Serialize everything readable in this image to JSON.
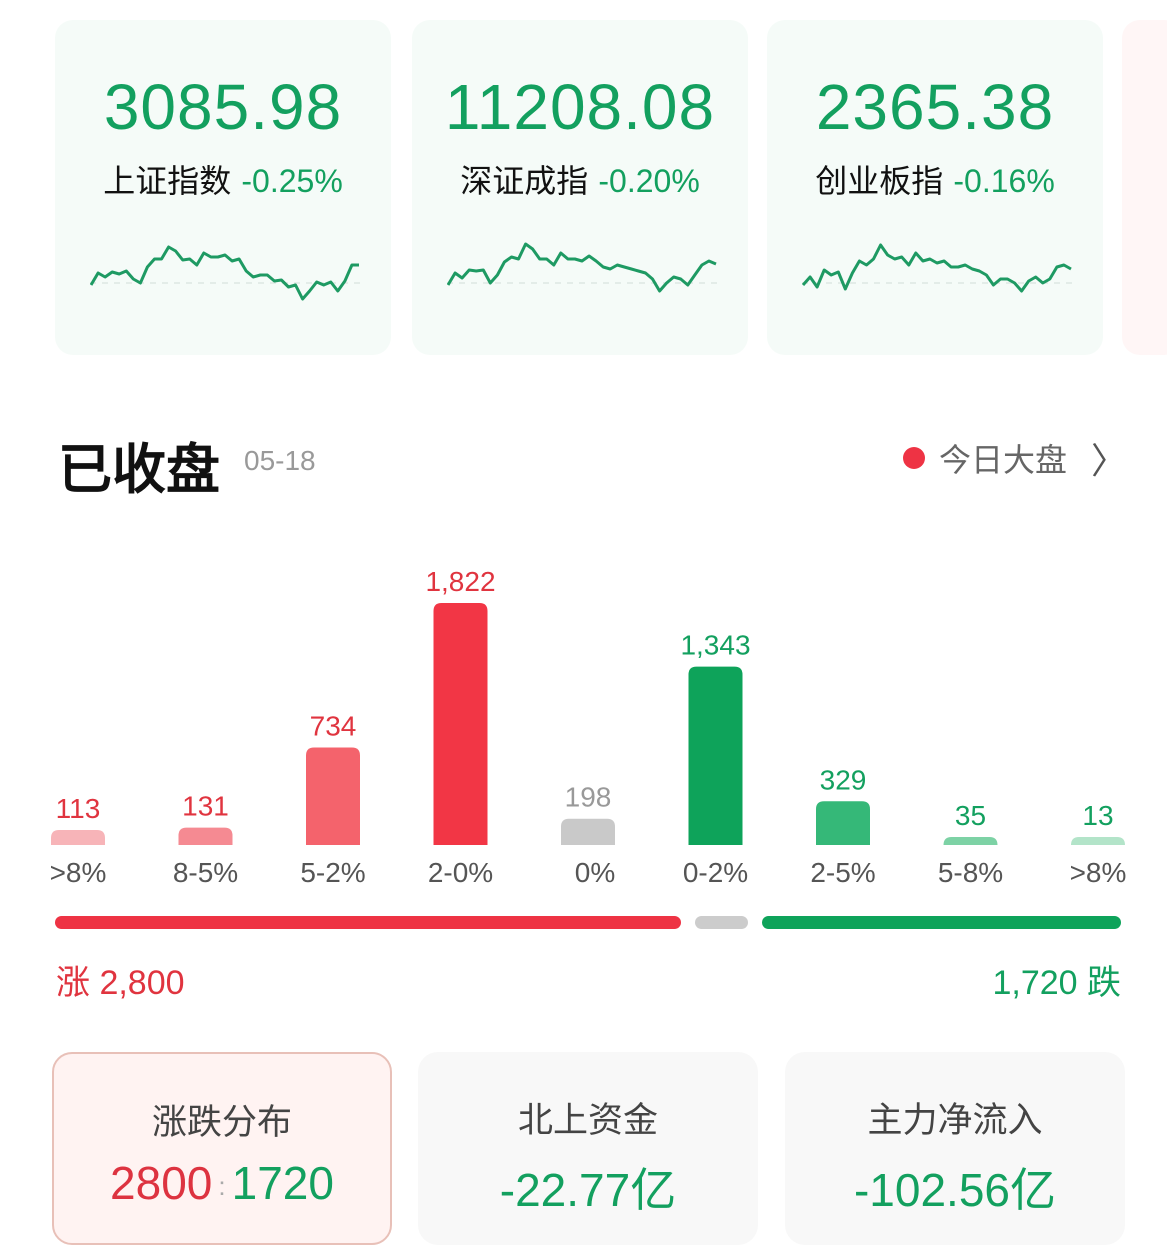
{
  "indices": [
    {
      "value": "3085.98",
      "name": "上证指数",
      "change": "-0.25%",
      "sparkline": [
        60,
        72,
        68,
        73,
        71,
        74,
        66,
        62,
        78,
        86,
        86,
        98,
        94,
        85,
        86,
        80,
        92,
        88,
        88,
        90,
        84,
        86,
        74,
        68,
        70,
        70,
        64,
        65,
        58,
        60,
        46,
        54,
        63,
        60,
        63,
        54,
        64,
        80,
        80
      ]
    },
    {
      "value": "11208.08",
      "name": "深证成指",
      "change": "-0.20%",
      "sparkline": [
        60,
        72,
        67,
        75,
        74,
        75,
        62,
        70,
        83,
        88,
        86,
        101,
        96,
        86,
        86,
        80,
        92,
        86,
        86,
        84,
        89,
        84,
        78,
        76,
        80,
        78,
        76,
        74,
        72,
        66,
        54,
        62,
        68,
        66,
        60,
        70,
        80,
        84,
        81
      ]
    },
    {
      "value": "2365.38",
      "name": "创业板指",
      "change": "-0.16%",
      "sparkline": [
        60,
        68,
        58,
        75,
        70,
        73,
        56,
        72,
        84,
        80,
        86,
        100,
        90,
        86,
        88,
        80,
        92,
        84,
        86,
        82,
        84,
        78,
        78,
        80,
        76,
        74,
        70,
        60,
        66,
        66,
        62,
        54,
        64,
        68,
        62,
        66,
        78,
        80,
        76
      ]
    }
  ],
  "section": {
    "title": "已收盘",
    "date": "05-18",
    "link": "今日大盘"
  },
  "chart_data": {
    "type": "bar",
    "categories": [
      ">8%",
      "8-5%",
      "5-2%",
      "2-0%",
      "0%",
      "0-2%",
      "2-5%",
      "5-8%",
      ">8%"
    ],
    "values": [
      113,
      131,
      734,
      1822,
      198,
      1343,
      329,
      35,
      13
    ],
    "value_labels": [
      "113",
      "131",
      "734",
      "1,822",
      "198",
      "1,343",
      "329",
      "35",
      "13"
    ],
    "colors": [
      "#f7b4b8",
      "#f58a92",
      "#f4636c",
      "#f23645",
      "#c9c9c9",
      "#0ea35a",
      "#35b878",
      "#7dd2a5",
      "#b3e4c9"
    ],
    "label_colors": [
      "#e0343f",
      "#e0343f",
      "#e0343f",
      "#e0343f",
      "#999999",
      "#13a05f",
      "#13a05f",
      "#13a05f",
      "#13a05f"
    ]
  },
  "ratio": {
    "rise_label": "涨 2,800",
    "fall_label": "1,720 跌",
    "rise": 2800,
    "fall": 1720,
    "rise_color": "#ee3344",
    "flat_color": "#cccccc",
    "fall_color": "#0ea35a"
  },
  "cards": [
    {
      "label": "涨跌分布",
      "rise": "2800",
      "sep": ":",
      "fall": "1720"
    },
    {
      "label": "北上资金",
      "value": "-22.77亿"
    },
    {
      "label": "主力净流入",
      "value": "-102.56亿"
    }
  ]
}
